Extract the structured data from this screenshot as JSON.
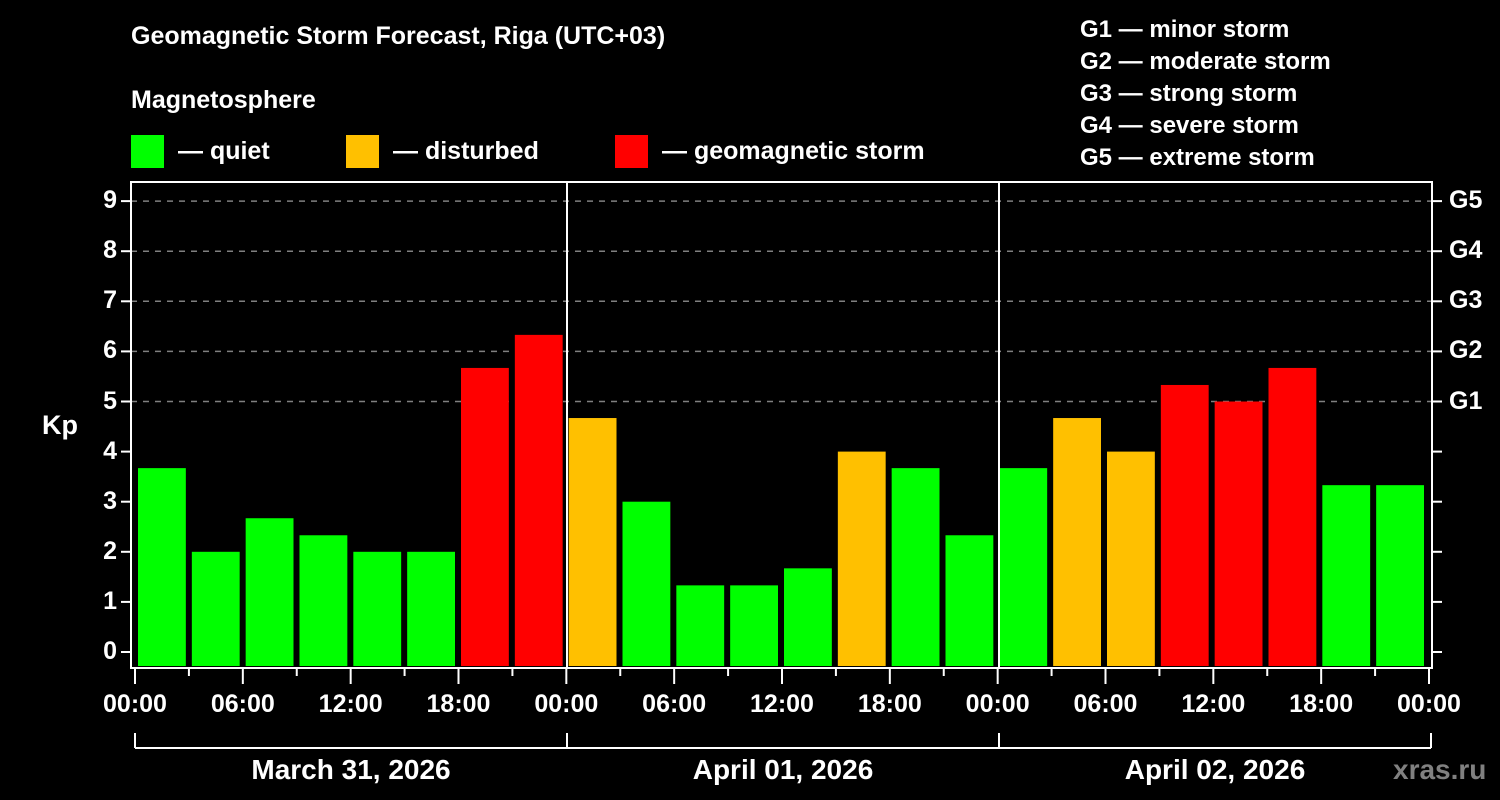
{
  "header": {
    "title": "Geomagnetic Storm Forecast, Riga (UTC+03)",
    "subtitle": "Magnetosphere"
  },
  "legend": {
    "items": [
      {
        "label": "— quiet",
        "color": "#00ff00"
      },
      {
        "label": "— disturbed",
        "color": "#ffc000"
      },
      {
        "label": "— geomagnetic storm",
        "color": "#ff0000"
      }
    ]
  },
  "storm_scale": {
    "items": [
      "G1 — minor storm",
      "G2 — moderate storm",
      "G3 — strong storm",
      "G4 — severe storm",
      "G5 — extreme storm"
    ]
  },
  "axes": {
    "ylabel": "Kp",
    "yticks": [
      "0",
      "1",
      "2",
      "3",
      "4",
      "5",
      "6",
      "7",
      "8",
      "9"
    ],
    "gticks": [
      {
        "label": "G1",
        "kp": 5
      },
      {
        "label": "G2",
        "kp": 6
      },
      {
        "label": "G3",
        "kp": 7
      },
      {
        "label": "G4",
        "kp": 8
      },
      {
        "label": "G5",
        "kp": 9
      }
    ],
    "xticks": [
      "00:00",
      "06:00",
      "12:00",
      "18:00",
      "00:00",
      "06:00",
      "12:00",
      "18:00",
      "00:00",
      "06:00",
      "12:00",
      "18:00",
      "00:00"
    ],
    "dates": [
      "March 31, 2026",
      "April 01, 2026",
      "April 02, 2026"
    ]
  },
  "brand": "xras.ru",
  "chart_data": {
    "type": "bar",
    "title": "Geomagnetic Storm Forecast, Riga (UTC+03)",
    "xlabel": "",
    "ylabel": "Kp",
    "ylim": [
      0,
      9
    ],
    "grid": "dashed horizontal at Kp 5-9",
    "interval_hours": 3,
    "days": [
      "March 31, 2026",
      "April 01, 2026",
      "April 02, 2026"
    ],
    "categories": [
      "Mar31 00-03",
      "Mar31 03-06",
      "Mar31 06-09",
      "Mar31 09-12",
      "Mar31 12-15",
      "Mar31 15-18",
      "Mar31 18-21",
      "Mar31 21-24",
      "Apr01 00-03",
      "Apr01 03-06",
      "Apr01 06-09",
      "Apr01 09-12",
      "Apr01 12-15",
      "Apr01 15-18",
      "Apr01 18-21",
      "Apr01 21-24",
      "Apr02 00-03",
      "Apr02 03-06",
      "Apr02 06-09",
      "Apr02 09-12",
      "Apr02 12-15",
      "Apr02 15-18",
      "Apr02 18-21",
      "Apr02 21-24"
    ],
    "values": [
      3.67,
      2.0,
      2.67,
      2.33,
      2.0,
      2.0,
      5.67,
      6.33,
      4.67,
      3.0,
      1.33,
      1.33,
      1.67,
      4.0,
      3.67,
      2.33,
      3.67,
      4.67,
      4.0,
      5.33,
      5.0,
      5.67,
      3.33,
      3.33
    ],
    "status": [
      "quiet",
      "quiet",
      "quiet",
      "quiet",
      "quiet",
      "quiet",
      "storm",
      "storm",
      "disturbed",
      "quiet",
      "quiet",
      "quiet",
      "quiet",
      "disturbed",
      "quiet",
      "quiet",
      "quiet",
      "disturbed",
      "disturbed",
      "storm",
      "storm",
      "storm",
      "quiet",
      "quiet"
    ],
    "colors": {
      "quiet": "#00ff00",
      "disturbed": "#ffc000",
      "storm": "#ff0000"
    },
    "legend": [
      "quiet",
      "disturbed",
      "geomagnetic storm"
    ]
  }
}
